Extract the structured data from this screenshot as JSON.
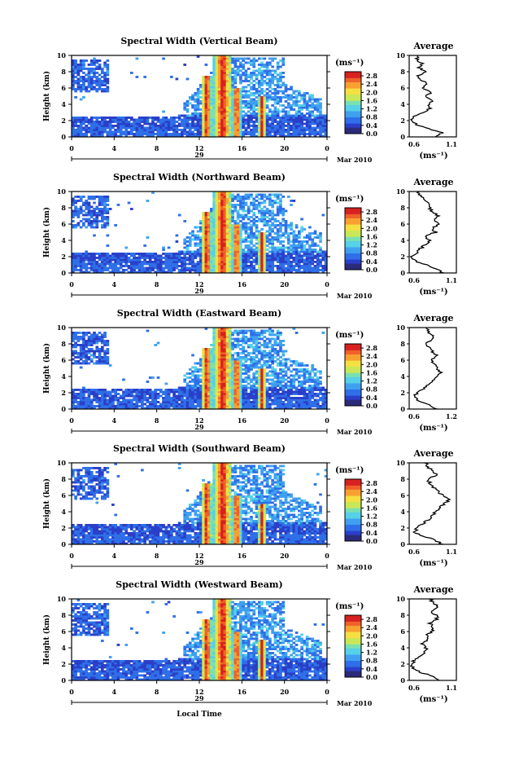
{
  "figure": {
    "ylabel": "Height (km)",
    "xlabel": "Local Time",
    "date_suffix": "Mar 2010",
    "day_label": "29",
    "colorbar_unit": "(ms⁻¹)",
    "average_title": "Average",
    "average_unit": "(ms⁻¹)"
  },
  "colorbar_ticks": [
    "2.8",
    "2.4",
    "2.0",
    "1.6",
    "1.2",
    "0.8",
    "0.4",
    "0.0"
  ],
  "colors": {
    "scale": [
      "#2b2b7a",
      "#2a3fc8",
      "#2f6fe8",
      "#3fa0f0",
      "#55d0e8",
      "#7be0b0",
      "#c8e858",
      "#f4e040",
      "#f8a030",
      "#f06028",
      "#d82020"
    ]
  },
  "chart_data": [
    {
      "type": "heatmap",
      "title": "Spectral Width (Vertical Beam)",
      "xlabel": "",
      "ylabel": "Height (km)",
      "xlim": [
        0,
        24
      ],
      "ylim": [
        0,
        10
      ],
      "xticks": [
        "0",
        "4",
        "8",
        "12",
        "16",
        "20",
        "0"
      ],
      "yticks": [
        "0",
        "2",
        "4",
        "6",
        "8",
        "10"
      ],
      "colorbar": {
        "label": "(ms⁻¹)",
        "range": [
          0,
          3.0
        ]
      },
      "profile": {
        "title": "Average",
        "xlabel": "(ms⁻¹)",
        "xlim": [
          0.6,
          1.1
        ],
        "xticks": [
          "0.6",
          "1.1"
        ],
        "heights": [
          0,
          0.5,
          1,
          1.5,
          2,
          2.5,
          3,
          3.5,
          4,
          4.5,
          5,
          5.5,
          6,
          6.5,
          7,
          7.5,
          8,
          8.5,
          9,
          9.5,
          10
        ],
        "values": [
          0.88,
          0.95,
          0.8,
          0.68,
          0.62,
          0.66,
          0.75,
          0.83,
          0.8,
          0.86,
          0.78,
          0.84,
          0.75,
          0.8,
          0.72,
          0.7,
          0.78,
          0.7,
          0.74,
          0.68,
          0.7
        ]
      }
    },
    {
      "type": "heatmap",
      "title": "Spectral Width (Northward Beam)",
      "xlabel": "",
      "ylabel": "Height (km)",
      "xlim": [
        0,
        24
      ],
      "ylim": [
        0,
        10
      ],
      "xticks": [
        "0",
        "4",
        "8",
        "12",
        "16",
        "20",
        "0"
      ],
      "yticks": [
        "0",
        "2",
        "4",
        "6",
        "8",
        "10"
      ],
      "colorbar": {
        "label": "(ms⁻¹)",
        "range": [
          0,
          3.0
        ]
      },
      "profile": {
        "title": "Average",
        "xlabel": "(ms⁻¹)",
        "xlim": [
          0.6,
          1.1
        ],
        "xticks": [
          "0.6",
          "1.1"
        ],
        "heights": [
          0,
          0.5,
          1,
          1.5,
          2,
          2.5,
          3,
          3.5,
          4,
          4.5,
          5,
          5.5,
          6,
          6.5,
          7,
          7.5,
          8,
          8.5,
          9,
          9.5,
          10
        ],
        "values": [
          0.95,
          0.9,
          0.78,
          0.66,
          0.62,
          0.68,
          0.72,
          0.78,
          0.82,
          0.76,
          0.88,
          0.84,
          0.92,
          0.86,
          0.9,
          0.85,
          0.82,
          0.8,
          0.76,
          0.72,
          0.7
        ]
      }
    },
    {
      "type": "heatmap",
      "title": "Spectral Width (Eastward Beam)",
      "xlabel": "",
      "ylabel": "Height (km)",
      "xlim": [
        0,
        24
      ],
      "ylim": [
        0,
        10
      ],
      "xticks": [
        "0",
        "4",
        "8",
        "12",
        "16",
        "20",
        "0"
      ],
      "yticks": [
        "0",
        "2",
        "4",
        "6",
        "8",
        "10"
      ],
      "colorbar": {
        "label": "(ms⁻¹)",
        "range": [
          0,
          3.0
        ]
      },
      "profile": {
        "title": "Average",
        "xlabel": "(ms⁻¹)",
        "xlim": [
          0.6,
          1.2
        ],
        "xticks": [
          "0.6",
          "1.2"
        ],
        "heights": [
          0,
          0.5,
          1,
          1.5,
          2,
          2.5,
          3,
          3.5,
          4,
          4.5,
          5,
          5.5,
          6,
          6.5,
          7,
          7.5,
          8,
          8.5,
          9,
          9.5,
          10
        ],
        "values": [
          0.95,
          0.85,
          0.72,
          0.66,
          0.7,
          0.78,
          0.85,
          0.9,
          0.96,
          1.0,
          0.95,
          0.92,
          0.88,
          0.96,
          0.9,
          0.86,
          0.8,
          0.88,
          0.9,
          0.84,
          0.82
        ]
      }
    },
    {
      "type": "heatmap",
      "title": "Spectral Width (Southward Beam)",
      "xlabel": "",
      "ylabel": "Height (km)",
      "xlim": [
        0,
        24
      ],
      "ylim": [
        0,
        10
      ],
      "xticks": [
        "0",
        "4",
        "8",
        "12",
        "16",
        "20",
        "0"
      ],
      "yticks": [
        "0",
        "2",
        "4",
        "6",
        "8",
        "10"
      ],
      "colorbar": {
        "label": "(ms⁻¹)",
        "range": [
          0,
          3.0
        ]
      },
      "profile": {
        "title": "Average",
        "xlabel": "(ms⁻¹)",
        "xlim": [
          0.6,
          1.1
        ],
        "xticks": [
          "0.6",
          "1.1"
        ],
        "heights": [
          0,
          0.5,
          1,
          1.5,
          2,
          2.5,
          3,
          3.5,
          4,
          4.5,
          5,
          5.5,
          6,
          6.5,
          7,
          7.5,
          8,
          8.5,
          9,
          9.5,
          10
        ],
        "values": [
          0.95,
          0.88,
          0.75,
          0.66,
          0.68,
          0.74,
          0.8,
          0.84,
          0.88,
          0.92,
          0.98,
          1.02,
          0.96,
          0.9,
          0.86,
          0.82,
          0.8,
          0.9,
          0.85,
          0.8,
          0.78
        ]
      }
    },
    {
      "type": "heatmap",
      "title": "Spectral Width (Westward Beam)",
      "xlabel": "Local Time",
      "ylabel": "Height (km)",
      "xlim": [
        0,
        24
      ],
      "ylim": [
        0,
        10
      ],
      "xticks": [
        "0",
        "4",
        "8",
        "12",
        "16",
        "20",
        "0"
      ],
      "yticks": [
        "0",
        "2",
        "4",
        "6",
        "8",
        "10"
      ],
      "colorbar": {
        "label": "(ms⁻¹)",
        "range": [
          0,
          3.0
        ]
      },
      "profile": {
        "title": "Average",
        "xlabel": "(ms⁻¹)",
        "xlim": [
          0.6,
          1.1
        ],
        "xticks": [
          "0.6",
          "1.1"
        ],
        "heights": [
          0,
          0.5,
          1,
          1.5,
          2,
          2.5,
          3,
          3.5,
          4,
          4.5,
          5,
          5.5,
          6,
          6.5,
          7,
          7.5,
          8,
          8.5,
          9,
          9.5,
          10
        ],
        "values": [
          0.92,
          0.85,
          0.72,
          0.64,
          0.62,
          0.66,
          0.72,
          0.76,
          0.78,
          0.74,
          0.8,
          0.78,
          0.84,
          0.86,
          0.82,
          0.9,
          0.88,
          0.84,
          0.92,
          0.86,
          0.82
        ]
      }
    }
  ]
}
